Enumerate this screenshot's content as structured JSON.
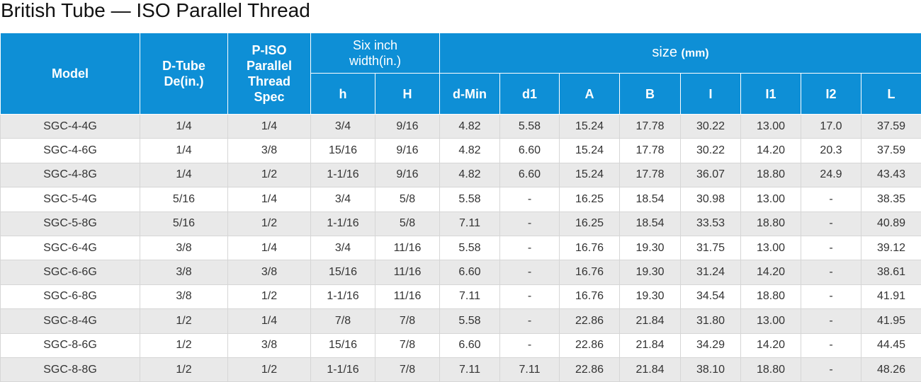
{
  "title": "British Tube — ISO Parallel Thread",
  "table": {
    "header": {
      "model": "Model",
      "d_tube": "D-Tube De(in.)",
      "p_iso": "P-ISO Parallel Thread Spec",
      "six_inch": "Six inch width(in.)",
      "size": "size",
      "size_unit": "(mm)",
      "sub": [
        "h",
        "H",
        "d-Min",
        "d1",
        "A",
        "B",
        "I",
        "I1",
        "I2",
        "L"
      ]
    },
    "rows": [
      [
        "SGC-4-4G",
        "1/4",
        "1/4",
        "3/4",
        "9/16",
        "4.82",
        "5.58",
        "15.24",
        "17.78",
        "30.22",
        "13.00",
        "17.0",
        "37.59"
      ],
      [
        "SGC-4-6G",
        "1/4",
        "3/8",
        "15/16",
        "9/16",
        "4.82",
        "6.60",
        "15.24",
        "17.78",
        "30.22",
        "14.20",
        "20.3",
        "37.59"
      ],
      [
        "SGC-4-8G",
        "1/4",
        "1/2",
        "1-1/16",
        "9/16",
        "4.82",
        "6.60",
        "15.24",
        "17.78",
        "36.07",
        "18.80",
        "24.9",
        "43.43"
      ],
      [
        "SGC-5-4G",
        "5/16",
        "1/4",
        "3/4",
        "5/8",
        "5.58",
        "-",
        "16.25",
        "18.54",
        "30.98",
        "13.00",
        "-",
        "38.35"
      ],
      [
        "SGC-5-8G",
        "5/16",
        "1/2",
        "1-1/16",
        "5/8",
        "7.11",
        "-",
        "16.25",
        "18.54",
        "33.53",
        "18.80",
        "-",
        "40.89"
      ],
      [
        "SGC-6-4G",
        "3/8",
        "1/4",
        "3/4",
        "11/16",
        "5.58",
        "-",
        "16.76",
        "19.30",
        "31.75",
        "13.00",
        "-",
        "39.12"
      ],
      [
        "SGC-6-6G",
        "3/8",
        "3/8",
        "15/16",
        "11/16",
        "6.60",
        "-",
        "16.76",
        "19.30",
        "31.24",
        "14.20",
        "-",
        "38.61"
      ],
      [
        "SGC-6-8G",
        "3/8",
        "1/2",
        "1-1/16",
        "11/16",
        "7.11",
        "-",
        "16.76",
        "19.30",
        "34.54",
        "18.80",
        "-",
        "41.91"
      ],
      [
        "SGC-8-4G",
        "1/2",
        "1/4",
        "7/8",
        "7/8",
        "5.58",
        "-",
        "22.86",
        "21.84",
        "31.80",
        "13.00",
        "-",
        "41.95"
      ],
      [
        "SGC-8-6G",
        "1/2",
        "3/8",
        "15/16",
        "7/8",
        "6.60",
        "-",
        "22.86",
        "21.84",
        "34.29",
        "14.20",
        "-",
        "44.45"
      ],
      [
        "SGC-8-8G",
        "1/2",
        "1/2",
        "1-1/16",
        "7/8",
        "7.11",
        "7.11",
        "22.86",
        "21.84",
        "38.10",
        "18.80",
        "-",
        "48.26"
      ]
    ]
  }
}
